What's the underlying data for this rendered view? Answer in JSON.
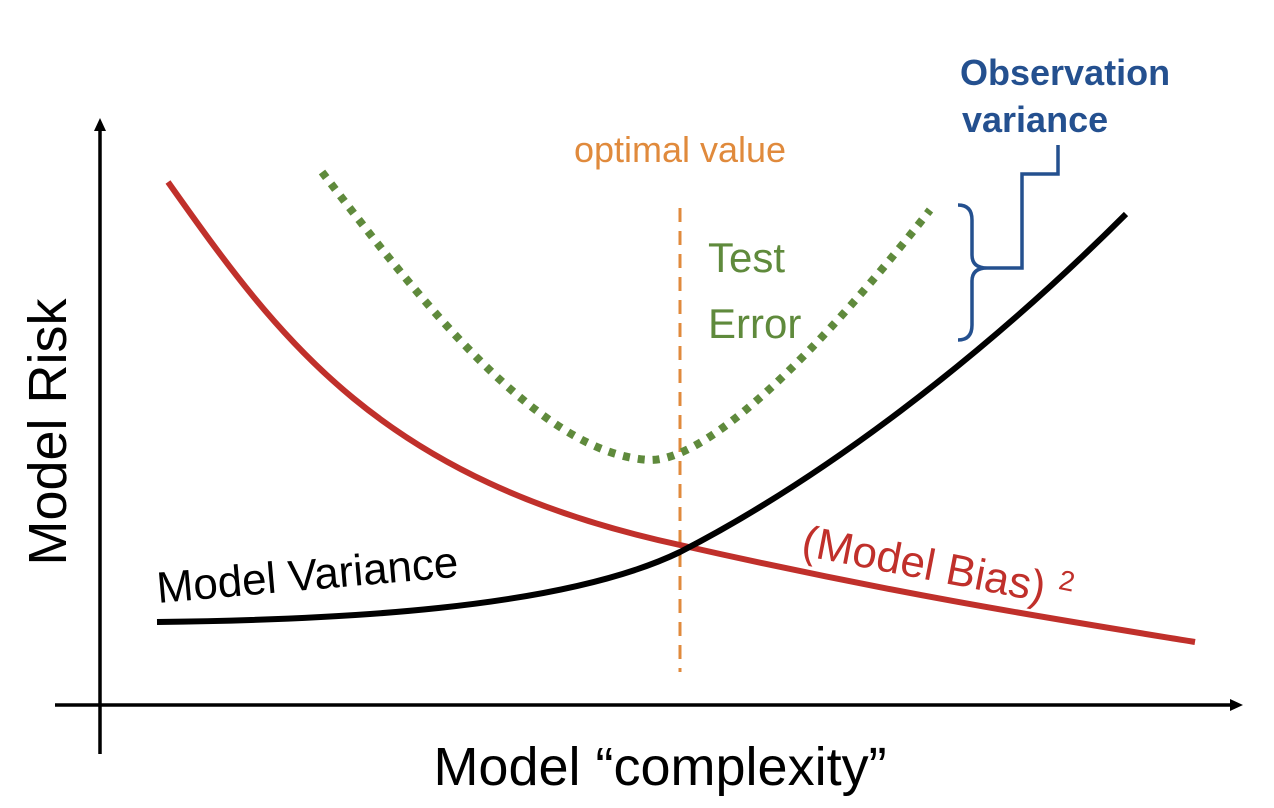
{
  "axes": {
    "x_label": "Model “complexity”",
    "y_label": "Model Risk"
  },
  "curves": {
    "variance": {
      "label": "Model Variance",
      "color": "#000000"
    },
    "bias": {
      "label": "(Model Bias)",
      "superscript": "2",
      "color": "#c0302b"
    },
    "test_error": {
      "label_line1": "Test",
      "label_line2": "Error",
      "color": "#5f8a3c",
      "style": "dotted"
    }
  },
  "optimal": {
    "label": "optimal value",
    "color": "#e08a3c",
    "style": "dashed"
  },
  "observation_variance": {
    "label_line1": "Observation",
    "label_line2": "variance",
    "color": "#24508f"
  }
}
